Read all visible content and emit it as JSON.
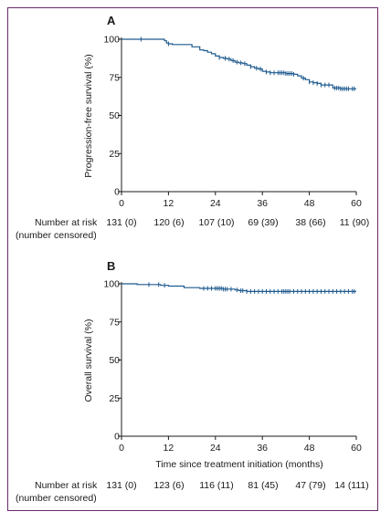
{
  "chart_data": [
    {
      "type": "line",
      "panel": "A",
      "xlabel": "",
      "ylabel": "Progression-free survival (%)",
      "xlim": [
        0,
        60
      ],
      "ylim": [
        0,
        100
      ],
      "xticks": [
        0,
        12,
        24,
        36,
        48,
        60
      ],
      "yticks": [
        0,
        25,
        50,
        75,
        100
      ],
      "grid": false,
      "series": [
        {
          "color": "#1f5b8f",
          "x": [
            0,
            3,
            6,
            9,
            11,
            11.5,
            12,
            13,
            15,
            18,
            20,
            21,
            22,
            23,
            24,
            25,
            26,
            27,
            28,
            29,
            30,
            31,
            32,
            33,
            34,
            35,
            36,
            37,
            38,
            40,
            42,
            43,
            44,
            45,
            46,
            47,
            48,
            49,
            50,
            51,
            52,
            53,
            54,
            56,
            58,
            60
          ],
          "y": [
            100,
            100,
            100,
            100,
            99,
            97.5,
            97,
            96.5,
            96.5,
            95,
            93,
            92.5,
            91.5,
            90.5,
            89,
            88,
            87.5,
            87,
            86,
            85,
            84.5,
            84,
            83,
            82,
            81,
            80.5,
            79,
            78.5,
            78,
            78,
            77.5,
            77.5,
            77,
            76,
            74.5,
            73.5,
            72,
            71.5,
            71,
            70,
            70,
            70,
            68,
            67.5,
            67.5,
            67.5
          ]
        }
      ],
      "censor_x": [
        5,
        12,
        25,
        26.5,
        27.5,
        28.5,
        29.5,
        30.5,
        31.5,
        33,
        34.5,
        35.5,
        37,
        38,
        39,
        40,
        40.5,
        41,
        41.5,
        42,
        42.5,
        43,
        43.5,
        44,
        46.5,
        48,
        49,
        50,
        51,
        52,
        53,
        54.5,
        55,
        55.5,
        56,
        56.5,
        57,
        57.5,
        58,
        59,
        59.5
      ]
    },
    {
      "type": "line",
      "panel": "B",
      "xlabel": "Time since treatment initiation (months)",
      "ylabel": "Overall survival (%)",
      "xlim": [
        0,
        60
      ],
      "ylim": [
        0,
        100
      ],
      "xticks": [
        0,
        12,
        24,
        36,
        48,
        60
      ],
      "yticks": [
        0,
        25,
        50,
        75,
        100
      ],
      "grid": false,
      "series": [
        {
          "color": "#1f5b8f",
          "x": [
            0,
            4,
            6,
            10,
            12,
            16,
            20,
            24,
            26,
            28,
            29,
            30,
            32,
            36,
            40,
            44,
            48,
            52,
            56,
            60
          ],
          "y": [
            100,
            99.5,
            99.5,
            99,
            98.5,
            97.5,
            97,
            97,
            96.5,
            96.5,
            96,
            95.5,
            95,
            95,
            95,
            95,
            95,
            95,
            95,
            95
          ]
        }
      ],
      "censor_x": [
        7,
        9.5,
        11,
        21,
        22,
        23,
        24,
        24.5,
        25,
        25.5,
        26,
        26.5,
        27,
        28,
        29.5,
        30.5,
        31,
        32,
        33,
        34,
        35,
        36,
        37,
        38,
        39,
        40,
        41,
        41.5,
        42,
        42.5,
        43,
        44,
        45,
        46,
        47,
        48,
        49,
        50,
        51,
        52,
        53,
        54,
        55,
        56,
        57,
        58,
        59,
        59.5
      ]
    }
  ],
  "panels": {
    "a_label": "A",
    "b_label": "B"
  },
  "risk_tables": {
    "header_line1": "Number at risk",
    "header_line2": "(number censored)",
    "a": [
      "131 (0)",
      "120 (6)",
      "107 (10)",
      "69 (39)",
      "38 (66)",
      "11 (90)"
    ],
    "b": [
      "131 (0)",
      "123 (6)",
      "116 (11)",
      "81 (45)",
      "47 (79)",
      "14 (111)"
    ]
  },
  "colors": {
    "line": "#1f5b8f",
    "frame": "#6b2a6b",
    "axis": "#1a1a1a"
  }
}
